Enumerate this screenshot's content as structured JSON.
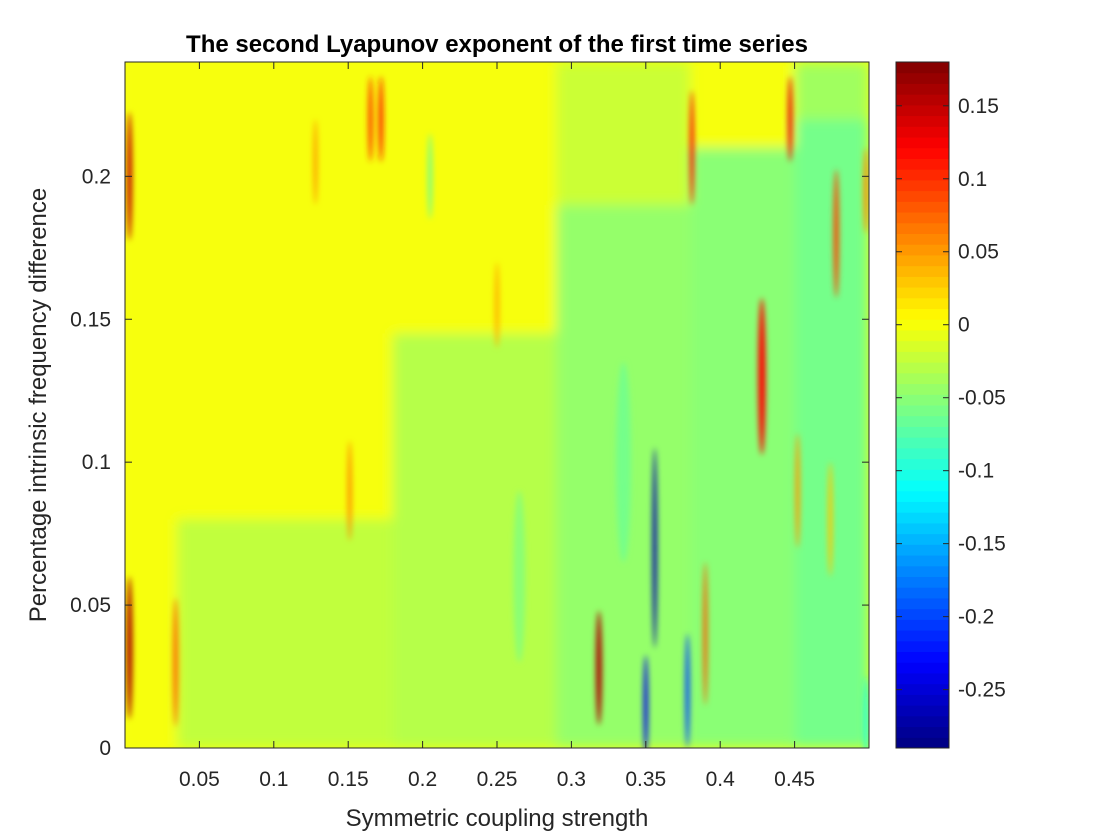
{
  "chart_data": {
    "type": "heatmap",
    "title": "The second Lyapunov exponent of the first time series",
    "xlabel": "Symmetric coupling strength",
    "ylabel": "Percentage intrinsic frequency difference",
    "xlim": [
      0,
      0.5
    ],
    "ylim": [
      0,
      0.24
    ],
    "x_ticks": [
      "0.05",
      "0.1",
      "0.15",
      "0.2",
      "0.25",
      "0.3",
      "0.35",
      "0.4",
      "0.45"
    ],
    "x_tick_values": [
      0.05,
      0.1,
      0.15,
      0.2,
      0.25,
      0.3,
      0.35,
      0.4,
      0.45
    ],
    "y_ticks": [
      "0",
      "0.05",
      "0.1",
      "0.15",
      "0.2"
    ],
    "y_tick_values": [
      0,
      0.05,
      0.1,
      0.15,
      0.2
    ],
    "colorbar": {
      "colormap": "jet",
      "range": [
        -0.29,
        0.18
      ],
      "ticks": [
        "0.15",
        "0.1",
        "0.05",
        "0",
        "-0.05",
        "-0.1",
        "-0.15",
        "-0.2",
        "-0.25"
      ],
      "tick_values": [
        0.15,
        0.1,
        0.05,
        0,
        -0.05,
        -0.1,
        -0.15,
        -0.2,
        -0.25
      ]
    },
    "baseline_regions": [
      {
        "x": [
          0.0,
          0.035
        ],
        "y": [
          0.0,
          0.24
        ],
        "value": 0.0
      },
      {
        "x": [
          0.035,
          0.18
        ],
        "y": [
          0.08,
          0.24
        ],
        "value": 0.0
      },
      {
        "x": [
          0.035,
          0.18
        ],
        "y": [
          0.0,
          0.08
        ],
        "value": -0.025
      },
      {
        "x": [
          0.18,
          0.29
        ],
        "y": [
          0.145,
          0.24
        ],
        "value": 0.0
      },
      {
        "x": [
          0.18,
          0.29
        ],
        "y": [
          0.0,
          0.145
        ],
        "value": -0.03
      },
      {
        "x": [
          0.29,
          0.38
        ],
        "y": [
          0.19,
          0.24
        ],
        "value": -0.02
      },
      {
        "x": [
          0.29,
          0.38
        ],
        "y": [
          0.0,
          0.19
        ],
        "value": -0.045
      },
      {
        "x": [
          0.38,
          0.45
        ],
        "y": [
          0.21,
          0.24
        ],
        "value": 0.0
      },
      {
        "x": [
          0.38,
          0.45
        ],
        "y": [
          0.0,
          0.21
        ],
        "value": -0.05
      },
      {
        "x": [
          0.45,
          0.5
        ],
        "y": [
          0.22,
          0.24
        ],
        "value": -0.04
      },
      {
        "x": [
          0.45,
          0.5
        ],
        "y": [
          0.0,
          0.22
        ],
        "value": -0.06
      }
    ],
    "features": [
      {
        "x": 0.003,
        "y": 0.2,
        "w": 0.0035,
        "h": 0.045,
        "value": 0.15
      },
      {
        "x": 0.003,
        "y": 0.035,
        "w": 0.004,
        "h": 0.05,
        "value": 0.16
      },
      {
        "x": 0.034,
        "y": 0.03,
        "w": 0.0035,
        "h": 0.045,
        "value": 0.07
      },
      {
        "x": 0.165,
        "y": 0.22,
        "w": 0.003,
        "h": 0.03,
        "value": 0.1
      },
      {
        "x": 0.172,
        "y": 0.22,
        "w": 0.003,
        "h": 0.03,
        "value": 0.11
      },
      {
        "x": 0.128,
        "y": 0.205,
        "w": 0.0025,
        "h": 0.03,
        "value": 0.05
      },
      {
        "x": 0.151,
        "y": 0.09,
        "w": 0.0025,
        "h": 0.035,
        "value": 0.06
      },
      {
        "x": 0.205,
        "y": 0.2,
        "w": 0.003,
        "h": 0.03,
        "value": -0.06
      },
      {
        "x": 0.25,
        "y": 0.155,
        "w": 0.003,
        "h": 0.03,
        "value": 0.04
      },
      {
        "x": 0.3185,
        "y": 0.028,
        "w": 0.004,
        "h": 0.04,
        "value": 0.16
      },
      {
        "x": 0.356,
        "y": 0.07,
        "w": 0.003,
        "h": 0.07,
        "value": -0.27
      },
      {
        "x": 0.35,
        "y": 0.015,
        "w": 0.003,
        "h": 0.035,
        "value": -0.24
      },
      {
        "x": 0.378,
        "y": 0.02,
        "w": 0.003,
        "h": 0.04,
        "value": -0.2
      },
      {
        "x": 0.381,
        "y": 0.21,
        "w": 0.002,
        "h": 0.04,
        "value": 0.12
      },
      {
        "x": 0.39,
        "y": 0.04,
        "w": 0.0025,
        "h": 0.05,
        "value": 0.08
      },
      {
        "x": 0.428,
        "y": 0.13,
        "w": 0.005,
        "h": 0.055,
        "value": 0.12
      },
      {
        "x": 0.447,
        "y": 0.22,
        "w": 0.003,
        "h": 0.03,
        "value": 0.13
      },
      {
        "x": 0.452,
        "y": 0.09,
        "w": 0.003,
        "h": 0.04,
        "value": 0.05
      },
      {
        "x": 0.478,
        "y": 0.18,
        "w": 0.0035,
        "h": 0.045,
        "value": 0.09
      },
      {
        "x": 0.474,
        "y": 0.08,
        "w": 0.003,
        "h": 0.04,
        "value": 0.03
      },
      {
        "x": 0.498,
        "y": 0.195,
        "w": 0.003,
        "h": 0.03,
        "value": 0.06
      },
      {
        "x": 0.498,
        "y": 0.01,
        "w": 0.003,
        "h": 0.03,
        "value": -0.1
      },
      {
        "x": 0.265,
        "y": 0.06,
        "w": 0.008,
        "h": 0.06,
        "value": -0.05
      },
      {
        "x": 0.335,
        "y": 0.1,
        "w": 0.01,
        "h": 0.07,
        "value": -0.06
      }
    ]
  }
}
